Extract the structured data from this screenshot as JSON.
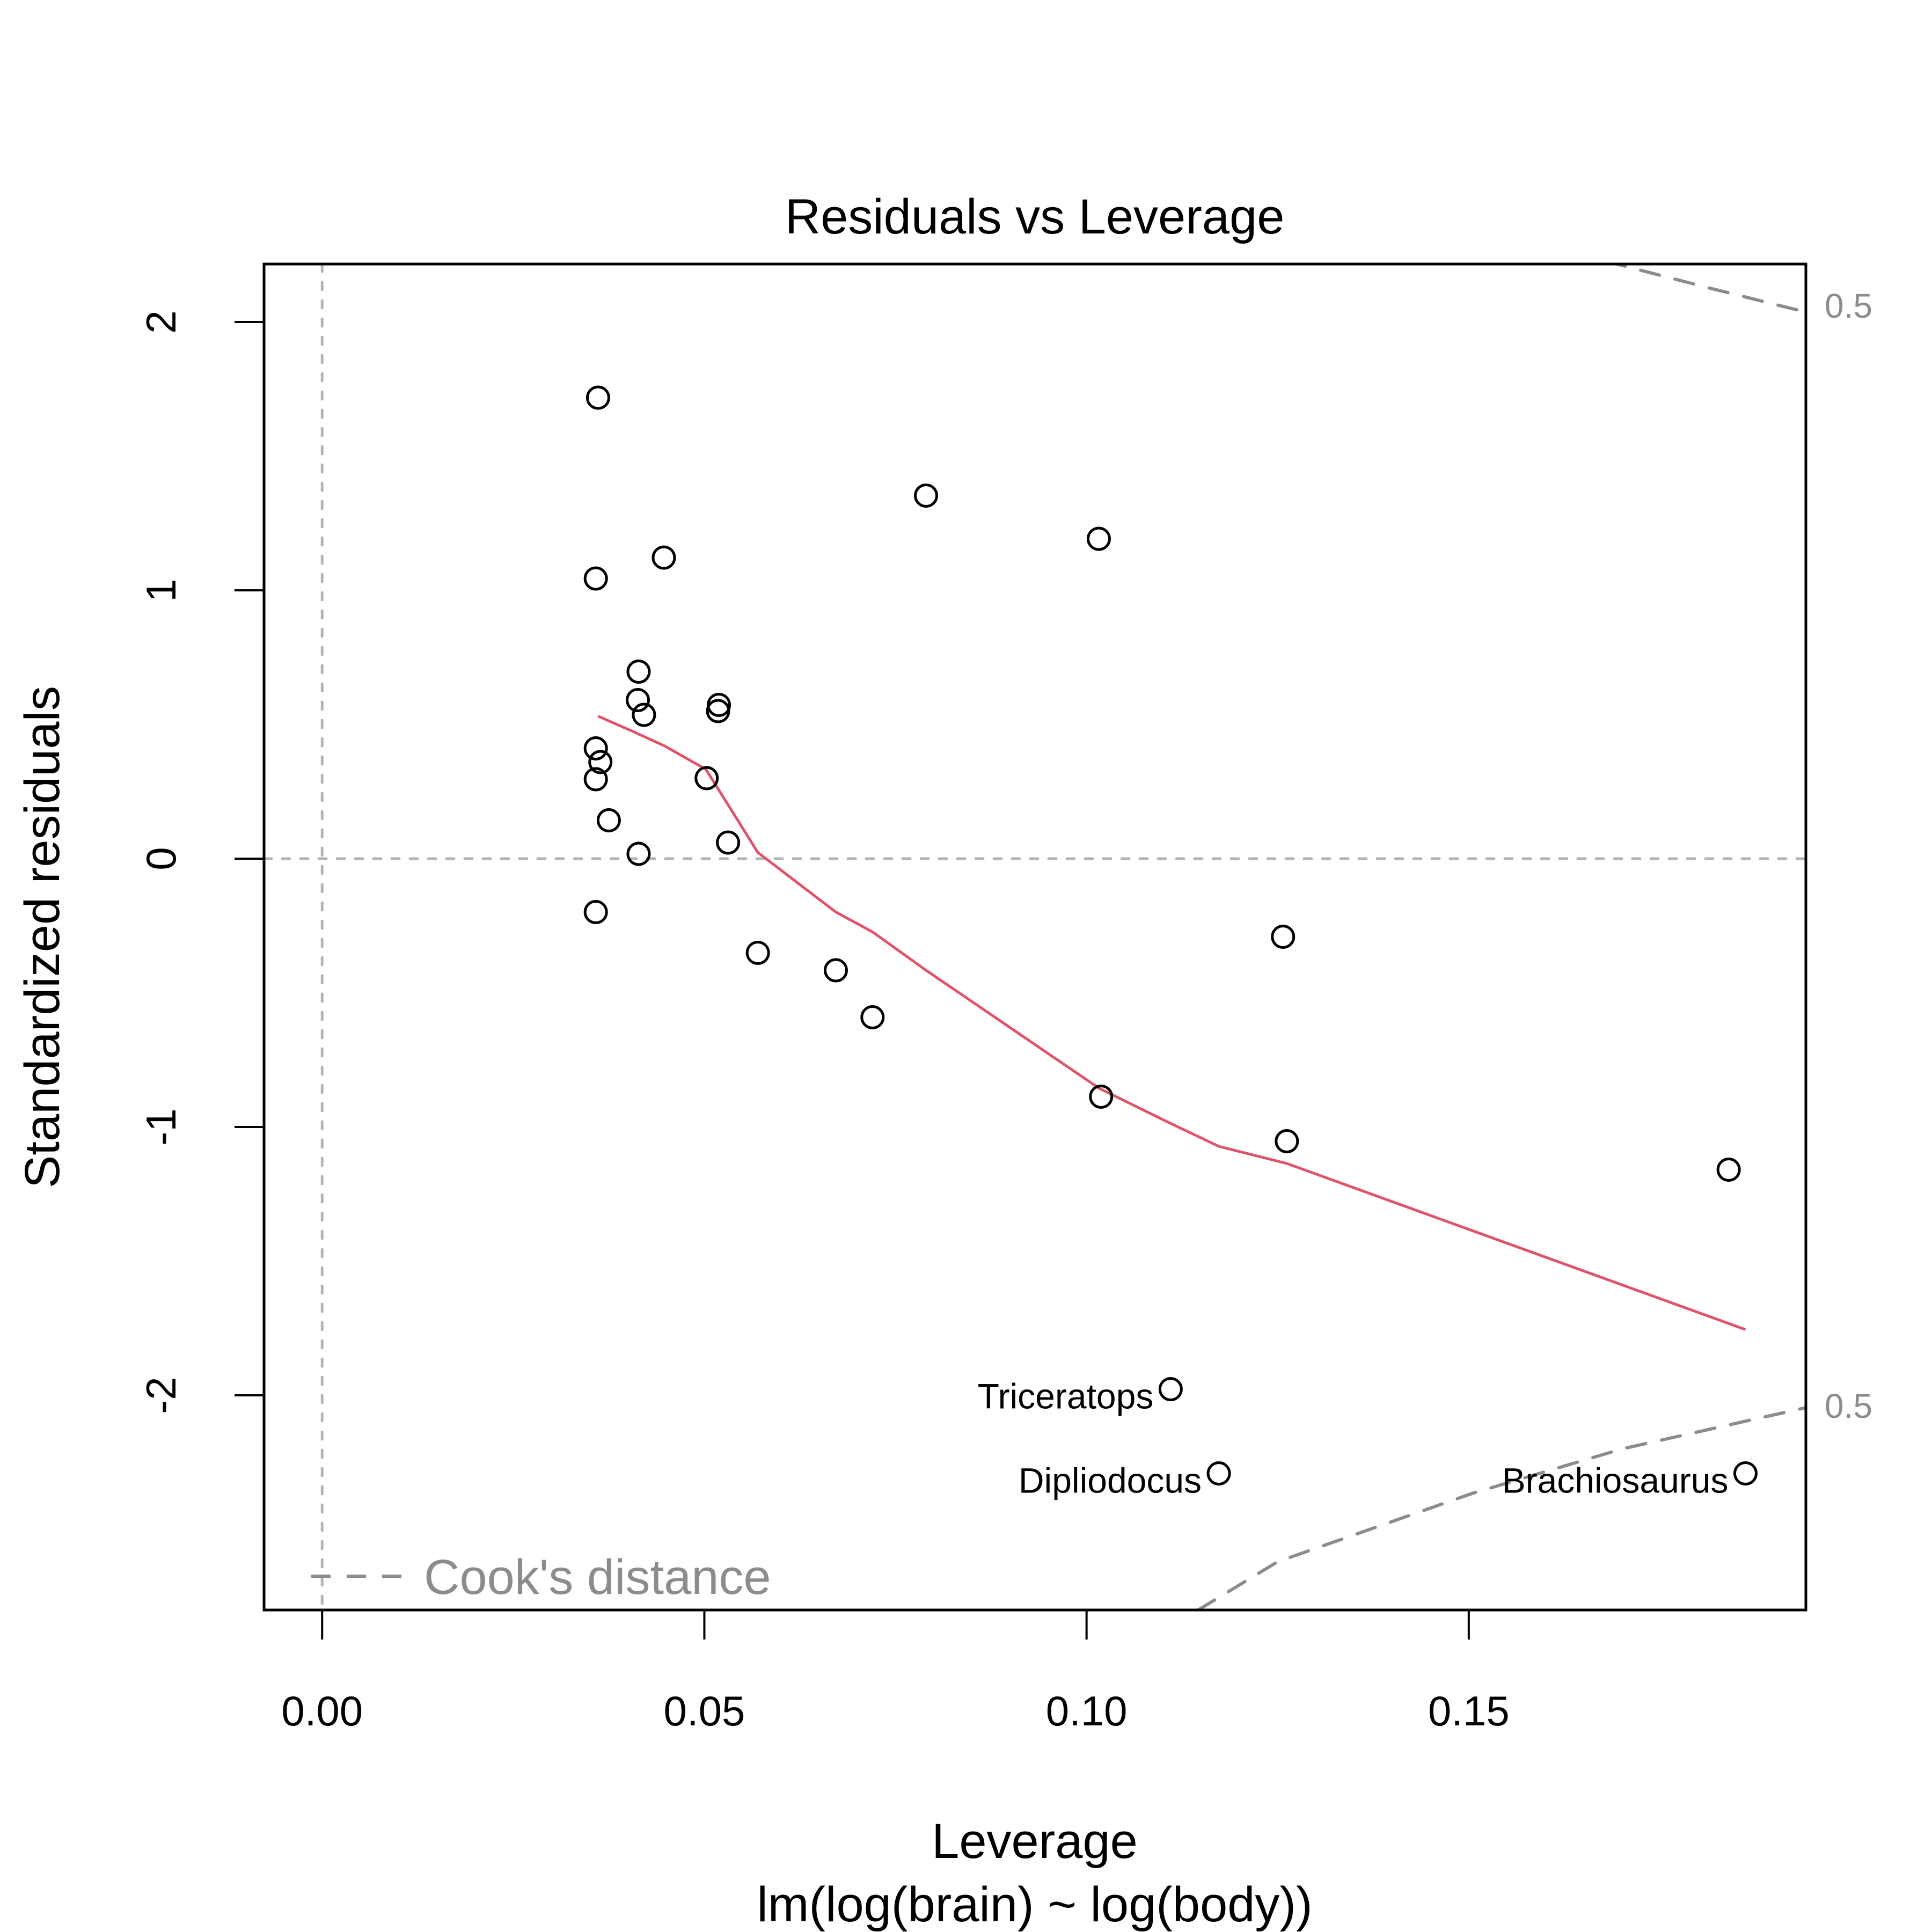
{
  "chart_data": {
    "type": "scatter",
    "title": "Residuals vs Leverage",
    "xlabel": "Leverage",
    "sublabel": "lm(log(brain) ~ log(body))",
    "ylabel": "Standardized residuals",
    "xlim": [
      -0.0076,
      0.1941
    ],
    "ylim": [
      -2.8,
      2.216
    ],
    "x_ticks": [
      {
        "value": 0.0,
        "label": "0.00"
      },
      {
        "value": 0.05,
        "label": "0.05"
      },
      {
        "value": 0.1,
        "label": "0.10"
      },
      {
        "value": 0.15,
        "label": "0.15"
      }
    ],
    "y_ticks": [
      {
        "value": 2,
        "label": "2"
      },
      {
        "value": 1,
        "label": "1"
      },
      {
        "value": 0,
        "label": "0"
      },
      {
        "value": -1,
        "label": "-1"
      },
      {
        "value": -2,
        "label": "-2"
      }
    ],
    "reference_lines": {
      "h": 0,
      "v": 0,
      "style": "dotted",
      "color": "#b3b3b3"
    },
    "points": [
      {
        "x": 0.0361,
        "y": 1.718
      },
      {
        "x": 0.079,
        "y": 1.353
      },
      {
        "x": 0.1016,
        "y": 1.192
      },
      {
        "x": 0.0447,
        "y": 1.122
      },
      {
        "x": 0.0358,
        "y": 1.044
      },
      {
        "x": 0.0414,
        "y": 0.697
      },
      {
        "x": 0.0413,
        "y": 0.591
      },
      {
        "x": 0.0421,
        "y": 0.536
      },
      {
        "x": 0.0519,
        "y": 0.573
      },
      {
        "x": 0.0518,
        "y": 0.55
      },
      {
        "x": 0.0358,
        "y": 0.411
      },
      {
        "x": 0.0364,
        "y": 0.36
      },
      {
        "x": 0.0358,
        "y": 0.296
      },
      {
        "x": 0.0503,
        "y": 0.3
      },
      {
        "x": 0.0375,
        "y": 0.143
      },
      {
        "x": 0.0414,
        "y": 0.018
      },
      {
        "x": 0.0531,
        "y": 0.06
      },
      {
        "x": 0.0358,
        "y": -0.199
      },
      {
        "x": 0.057,
        "y": -0.351
      },
      {
        "x": 0.0672,
        "y": -0.416
      },
      {
        "x": 0.072,
        "y": -0.591
      },
      {
        "x": 0.1257,
        "y": -0.291
      },
      {
        "x": 0.1019,
        "y": -0.887
      },
      {
        "x": 0.1262,
        "y": -1.053
      },
      {
        "x": 0.184,
        "y": -1.159
      },
      {
        "x": 0.111,
        "y": -1.977,
        "label": "Triceratops"
      },
      {
        "x": 0.1173,
        "y": -2.291,
        "label": "Dipliodocus"
      },
      {
        "x": 0.1862,
        "y": -2.291,
        "label": "Brachiosaurus"
      }
    ],
    "smooth_line": {
      "color": "#DF536B",
      "points": [
        [
          0.0361,
          0.531
        ],
        [
          0.0405,
          0.476
        ],
        [
          0.0448,
          0.42
        ],
        [
          0.0502,
          0.333
        ],
        [
          0.057,
          0.023
        ],
        [
          0.0672,
          -0.199
        ],
        [
          0.072,
          -0.273
        ],
        [
          0.079,
          -0.416
        ],
        [
          0.1016,
          -0.855
        ],
        [
          0.1108,
          -0.984
        ],
        [
          0.1173,
          -1.072
        ],
        [
          0.1262,
          -1.136
        ],
        [
          0.1862,
          -1.755
        ]
      ]
    },
    "cooks_distance": {
      "color": "#8c8c8c",
      "level_label": "0.5",
      "upper": [
        [
          0.168,
          2.226
        ],
        [
          0.181,
          2.13
        ],
        [
          0.1941,
          2.037
        ]
      ],
      "lower": [
        [
          0.1146,
          -2.8
        ],
        [
          0.125,
          -2.62
        ],
        [
          0.1505,
          -2.365
        ],
        [
          0.17,
          -2.2
        ],
        [
          0.1941,
          -2.046
        ]
      ],
      "upper_label_y": 2.06,
      "lower_label_y": -2.04
    },
    "legend": {
      "text": "Cook's distance",
      "placement": "bottom-left",
      "line_style": "dashed"
    }
  }
}
